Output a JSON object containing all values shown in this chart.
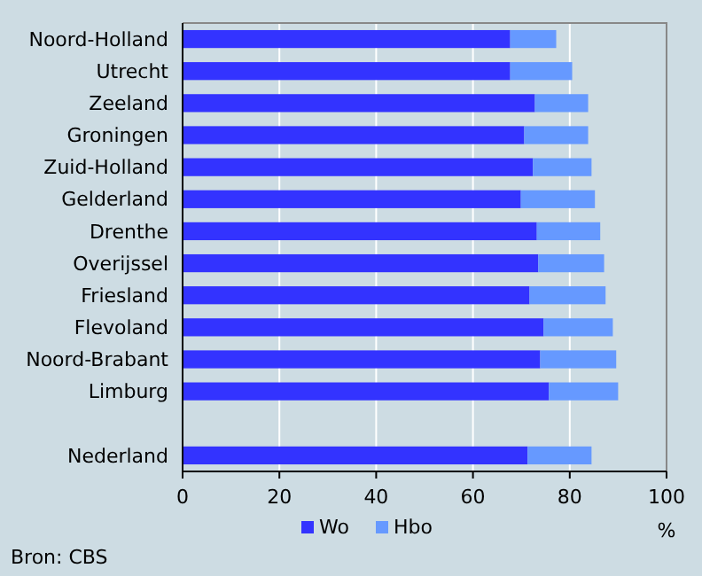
{
  "chart_data": {
    "type": "bar",
    "orientation": "horizontal",
    "stacked": true,
    "categories": [
      "Noord-Holland",
      "Utrecht",
      "Zeeland",
      "Groningen",
      "Zuid-Holland",
      "Gelderland",
      "Drenthe",
      "Overijssel",
      "Friesland",
      "Flevoland",
      "Noord-Brabant",
      "Limburg",
      null,
      "Nederland"
    ],
    "series": [
      {
        "name": "Wo",
        "color": "#3333ff",
        "values": [
          67.7,
          67.7,
          72.8,
          70.6,
          72.4,
          69.9,
          73.2,
          73.5,
          71.7,
          74.6,
          73.9,
          75.7,
          null,
          71.3
        ]
      },
      {
        "name": "Hbo",
        "color": "#6699ff",
        "values": [
          9.5,
          12.8,
          11.0,
          13.2,
          12.1,
          15.3,
          13.1,
          13.6,
          15.7,
          14.3,
          15.7,
          14.3,
          null,
          13.2
        ]
      }
    ],
    "xlim": [
      0,
      100
    ],
    "xticks": [
      0,
      20,
      40,
      60,
      80,
      100
    ],
    "xlabel": "%",
    "grid": "x",
    "legend": "bottom",
    "annotations": [
      "Bron: CBS"
    ]
  }
}
